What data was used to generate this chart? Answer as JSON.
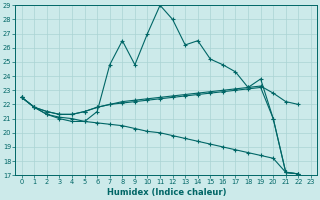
{
  "bg_color": "#cceaea",
  "line_color": "#006666",
  "grid_color": "#aad4d4",
  "xlabel": "Humidex (Indice chaleur)",
  "ylim": [
    17,
    29
  ],
  "xlim": [
    -0.5,
    23.5
  ],
  "yticks": [
    17,
    18,
    19,
    20,
    21,
    22,
    23,
    24,
    25,
    26,
    27,
    28,
    29
  ],
  "xticks": [
    0,
    1,
    2,
    3,
    4,
    5,
    6,
    7,
    8,
    9,
    10,
    11,
    12,
    13,
    14,
    15,
    16,
    17,
    18,
    19,
    20,
    21,
    22,
    23
  ],
  "series": [
    [
      22.5,
      21.8,
      21.3,
      21.0,
      20.8,
      20.8,
      21.5,
      24.8,
      26.5,
      24.8,
      27.0,
      29.0,
      28.0,
      26.2,
      26.5,
      25.2,
      24.8,
      24.3,
      23.2,
      23.8,
      21.0,
      17.2,
      17.1
    ],
    [
      22.5,
      21.8,
      21.5,
      21.3,
      21.3,
      21.5,
      21.8,
      22.0,
      22.2,
      22.3,
      22.4,
      22.5,
      22.6,
      22.7,
      22.8,
      22.9,
      23.0,
      23.1,
      23.2,
      23.3,
      22.8,
      22.2,
      22.0
    ],
    [
      22.5,
      21.8,
      21.5,
      21.3,
      21.3,
      21.5,
      21.8,
      22.0,
      22.1,
      22.2,
      22.3,
      22.4,
      22.5,
      22.6,
      22.7,
      22.8,
      22.9,
      23.0,
      23.1,
      23.2,
      21.0,
      17.2,
      17.1
    ],
    [
      22.5,
      21.8,
      21.3,
      21.1,
      21.0,
      20.8,
      20.7,
      20.6,
      20.5,
      20.3,
      20.1,
      20.0,
      19.8,
      19.6,
      19.4,
      19.2,
      19.0,
      18.8,
      18.6,
      18.4,
      18.2,
      17.2,
      17.1
    ]
  ]
}
